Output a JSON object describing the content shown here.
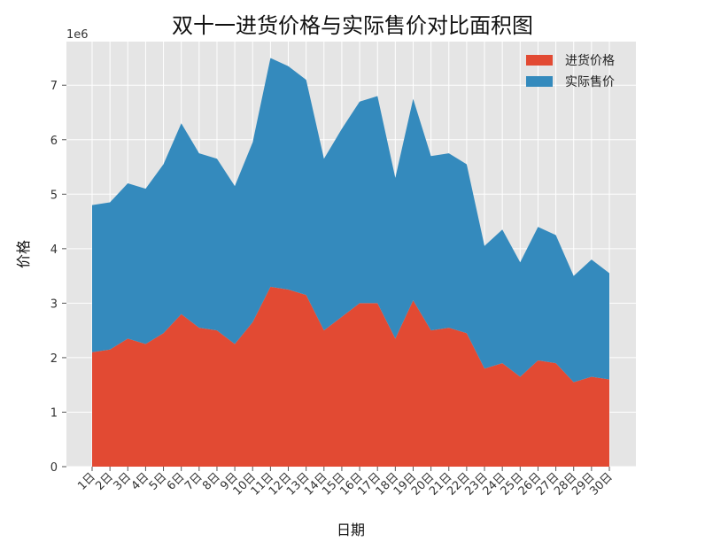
{
  "chart_data": {
    "type": "area",
    "stacked": true,
    "title": "双十一进货价格与实际售价对比面积图",
    "xlabel": "日期",
    "ylabel": "价格",
    "y_offset_label": "1e6",
    "ylim": [
      0,
      7800000
    ],
    "yticks": [
      0,
      1,
      2,
      3,
      4,
      5,
      6,
      7
    ],
    "grid": true,
    "legend_position": "top-right",
    "categories": [
      "1日",
      "2日",
      "3日",
      "4日",
      "5日",
      "6日",
      "7日",
      "8日",
      "9日",
      "10日",
      "11日",
      "12日",
      "13日",
      "14日",
      "15日",
      "16日",
      "17日",
      "18日",
      "19日",
      "20日",
      "21日",
      "22日",
      "23日",
      "24日",
      "25日",
      "26日",
      "27日",
      "28日",
      "29日",
      "30日"
    ],
    "series": [
      {
        "name": "进货价格",
        "color": "#E24A33",
        "values": [
          2100000,
          2150000,
          2350000,
          2250000,
          2450000,
          2800000,
          2550000,
          2500000,
          2250000,
          2650000,
          3300000,
          3250000,
          3150000,
          2500000,
          2750000,
          3000000,
          3000000,
          2350000,
          3050000,
          2500000,
          2550000,
          2450000,
          1800000,
          1900000,
          1650000,
          1950000,
          1900000,
          1550000,
          1650000,
          1600000
        ]
      },
      {
        "name": "实际售价",
        "color": "#348ABD",
        "values": [
          2700000,
          2700000,
          2850000,
          2850000,
          3100000,
          3500000,
          3200000,
          3150000,
          2900000,
          3300000,
          4200000,
          4100000,
          3950000,
          3150000,
          3450000,
          3700000,
          3800000,
          2950000,
          3700000,
          3200000,
          3200000,
          3100000,
          2250000,
          2450000,
          2100000,
          2450000,
          2350000,
          1950000,
          2150000,
          1950000
        ]
      }
    ]
  }
}
